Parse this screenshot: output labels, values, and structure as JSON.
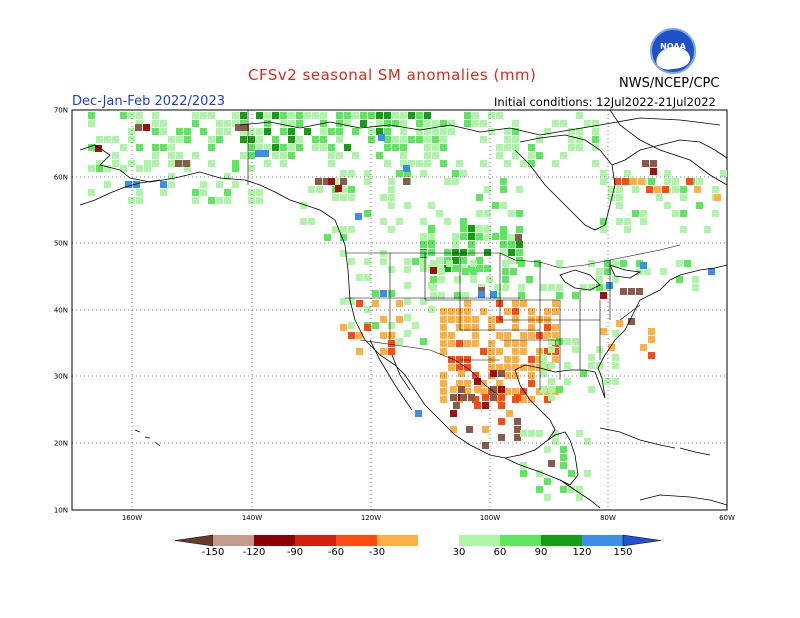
{
  "title": "CFSv2 seasonal SM anomalies (mm)",
  "period": "Dec-Jan-Feb 2022/2023",
  "initial_conditions": "Initial conditions: 12Jul2022-21Jul2022",
  "agency": "NWS/NCEP/CPC",
  "logo_text": "NOAA",
  "axes": {
    "lat_labels": [
      "70N",
      "60N",
      "50N",
      "40N",
      "30N",
      "20N",
      "10N"
    ],
    "lon_labels": [
      "160W",
      "140W",
      "120W",
      "100W",
      "80W",
      "60W"
    ]
  },
  "colorbar": {
    "labels": [
      "-150",
      "-120",
      "-90",
      "-60",
      "-30",
      "30",
      "60",
      "90",
      "120",
      "150"
    ],
    "colors": [
      "#8b5a4a",
      "#c49a8c",
      "#8b0000",
      "#d42010",
      "#ff4a10",
      "#ffb040",
      "#ffffff",
      "#aef5a8",
      "#5ce85c",
      "#12a012",
      "#3a90e8",
      "#1e3cd2"
    ]
  },
  "colors": {
    "title": "#e0281a",
    "period": "#1e3cd2",
    "land_green_light": "#aef5a8",
    "land_green_mid": "#5ce85c",
    "land_green_dark": "#12a012",
    "orange": "#ffb040",
    "red": "#ff4a10",
    "darkred": "#a01010",
    "brown": "#8b5a4a",
    "blue": "#3a90e8"
  }
}
